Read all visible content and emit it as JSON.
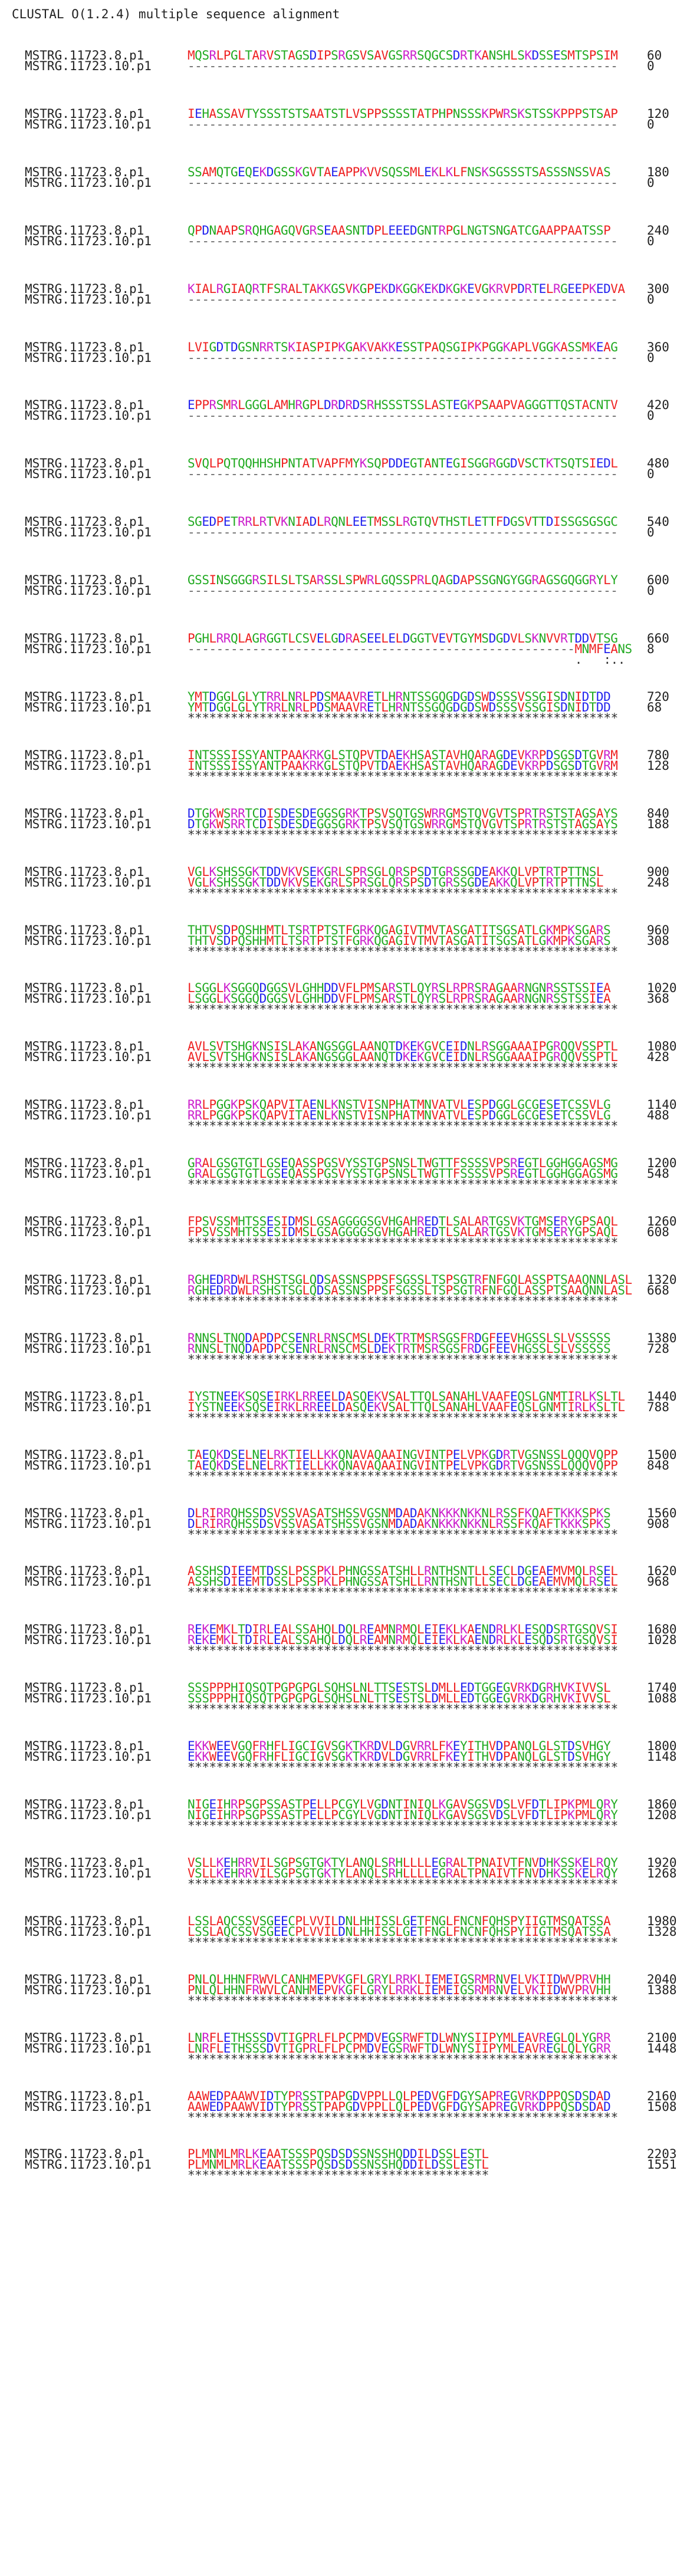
{
  "header": "CLUSTAL O(1.2.4) multiple sequence alignment",
  "colors": {
    "acidic": "#2222ee",
    "basic": "#cc22cc",
    "hydrophobic": "#ee2222",
    "polar": "#22aa22"
  },
  "blocks": [
    {
      "s1": "MQSRLPGLTARVSTAGSDIPSRGSVSAVGSRRSQGCSDRTKANSHLSKDSSESMTSPSIM",
      "n1": "60",
      "s2": "------------------------------------------------------------",
      "n2": "0",
      "c": "                                                            "
    },
    {
      "s1": "IEHASSAVTYSSSTSTSAATSTLVSPPSSSSTATPHPNSSSKPWRSKSTSSKPPPSTSAP",
      "n1": "120",
      "s2": "------------------------------------------------------------",
      "n2": "0",
      "c": "                                                            "
    },
    {
      "s1": "SSAMQTGEQEKDGSSKGVTAEAPPKVVSQSSMLEKLKLFNSKSGSSSTSASSSNSSVAS",
      "n1": "180",
      "s2": "------------------------------------------------------------",
      "n2": "0",
      "c": "                                                            "
    },
    {
      "s1": "QPDNAAPSRQHGAGQVGRSEAASNTDPLEEEDGNTRPGLNGTSNGATCGAAPPAATSSP",
      "n1": "240",
      "s2": "------------------------------------------------------------",
      "n2": "0",
      "c": "                                                            "
    },
    {
      "s1": "KIALRGIAQRTFSRALTAKKGSVKGPEKDKGGKEKDKGKEVGKRVPDRTELRGEEPKEDVA",
      "n1": "300",
      "s2": "------------------------------------------------------------",
      "n2": "0",
      "c": "                                                            "
    },
    {
      "s1": "LVIGDTDGSNRRTSKIASPIPKGAKVAKKESSTPAQSGIPKPGGKAPLVGGKASSMKEAG",
      "n1": "360",
      "s2": "------------------------------------------------------------",
      "n2": "0",
      "c": "                                                            "
    },
    {
      "s1": "EPPRSMRLGGGLAMHRGPLDRDRDSRHSSSTSSLASTEGKPSAAPVAGGGTTQSTACNTV",
      "n1": "420",
      "s2": "------------------------------------------------------------",
      "n2": "0",
      "c": "                                                            "
    },
    {
      "s1": "SVQLPQTQQHHSHPNTATVAPFMYKSQPDDEGTANTEGISGGRGGDVSCTKTSQTSIEDL",
      "n1": "480",
      "s2": "------------------------------------------------------------",
      "n2": "0",
      "c": "                                                            "
    },
    {
      "s1": "SGEDPETRRLRTVKNIADLRQNLEETMSSLRGTQVTHSTLETTFDGSVTTDISSGSGSGC",
      "n1": "540",
      "s2": "------------------------------------------------------------",
      "n2": "0",
      "c": "                                                            "
    },
    {
      "s1": "GSSINSGGGRSILSLTSARSSLSPWRLGQSSPRLQAGDAPSSGNGYGGRAGSGQGGRYLY",
      "n1": "600",
      "s2": "------------------------------------------------------------",
      "n2": "0",
      "c": "                                                            "
    },
    {
      "s1": "PGHLRRQLAGRGGTLCSVELGDRASEELELDGGTVEVTGYMSDGDVLSKNVVRTDDVTSG",
      "n1": "660",
      "s2": "------------------------------------------------------MNMFEANS",
      "n2": "8",
      "c": "                                                      .   :..  "
    },
    {
      "s1": "YMTDGGLGLYTRRLNRLPDSMAAVRETLHRNTSSGQGDGDSWDSSSVSSGISDNIDTDD",
      "n1": "720",
      "s2": "YMTDGGLGLYTRRLNRLPDSMAAVRETLHRNTSSGQGDGDSWDSSSVSSGISDNIDTDD",
      "n2": "68",
      "c": "************************************************************"
    },
    {
      "s1": "INTSSSISSYANTPAAKRKGLSTQPVTDAEKHSASTAVHQARAGDEVKRPDSGSDTGVRM",
      "n1": "780",
      "s2": "INTSSSISSYANTPAAKRKGLSTQPVTDAEKHSASTAVHQARAGDEVKRPDSGSDTGVRM",
      "n2": "128",
      "c": "************************************************************"
    },
    {
      "s1": "DTGKWSRRTCDISDESDEGGSGRKTPSVSQTGSWRRGMSTQVGVTSPRTRSTSTAGSAYS",
      "n1": "840",
      "s2": "DTGKWSRRTCDISDESDEGGSGRKTPSVSQTGSWRRGMSTQVGVTSPRTRSTSTAGSAYS",
      "n2": "188",
      "c": "************************************************************"
    },
    {
      "s1": "VGLKSHSSGKTDDVKVSEKGRLSPRSGLQRSPSDTGRSSGDEAKKQLVPTRTPTTNSL",
      "n1": "900",
      "s2": "VGLKSHSSGKTDDVKVSEKGRLSPRSGLQRSPSDTGRSSGDEAKKQLVPTRTPTTNSL",
      "n2": "248",
      "c": "************************************************************"
    },
    {
      "s1": "THTVSDPQSHHMTLTSRTPTSTFGRKQGAGIVTMVTASGATITSGSATLGKMPKSGARS",
      "n1": "960",
      "s2": "THTVSDPQSHHMTLTSRTPTSTFGRKQGAGIVTMVTASGATITSGSATLGKMPKSGARS",
      "n2": "308",
      "c": "************************************************************"
    },
    {
      "s1": "LSGGLKSGGQDGGSVLGHHDDVFLPMSARSTLQYRSLRPRSRAGAARNGNRSSTSSIEA",
      "n1": "1020",
      "s2": "LSGGLKSGGQDGGSVLGHHDDVFLPMSARSTLQYRSLRPRSRAGAARNGNRSSTSSIEA",
      "n2": "368",
      "c": "************************************************************"
    },
    {
      "s1": "AVLSVTSHGKNSISLAKANGSGGLAANQTDKEKGVCEIDNLRSGGAAAIPGRQQVSSPTL",
      "n1": "1080",
      "s2": "AVLSVTSHGKNSISLAKANGSGGLAANQTDKEKGVCEIDNLRSGGAAAIPGRQQVSSPTL",
      "n2": "428",
      "c": "************************************************************"
    },
    {
      "s1": "RRLPGGKPSKQAPVITAENLKNSTVISNPHATMNVATVLESPDGGLGCGESETCSSVLG",
      "n1": "1140",
      "s2": "RRLPGGKPSKQAPVITAENLKNSTVISNPHATMNVATVLESPDGGLGCGESETCSSVLG",
      "n2": "488",
      "c": "************************************************************"
    },
    {
      "s1": "GRALGSGTGTLGSEQASSPGSVYSSTGPSNSLTWGTTFSSSSVPSREGTLGGHGGAGSMG",
      "n1": "1200",
      "s2": "GRALGSGTGTLGSEQASSPGSVYSSTGPSNSLTWGTTFSSSSVPSREGTLGGHGGAGSMG",
      "n2": "548",
      "c": "************************************************************"
    },
    {
      "s1": "FPSVSSMHTSSESIDMSLGSAGGGGSGVHGAHREDTLSALARTGSVKTGMSERYGPSAQL",
      "n1": "1260",
      "s2": "FPSVSSMHTSSESIDMSLGSAGGGGSGVHGAHREDTLSALARTGSVKTGMSERYGPSAQL",
      "n2": "608",
      "c": "************************************************************"
    },
    {
      "s1": "RGHEDRDWLRSHSTSGLQDSASSNSPPSFSGSSLTSPSGTRFNFGQLASSPTSAAQNNLASL",
      "n1": "1320",
      "s2": "RGHEDRDWLRSHSTSGLQDSASSNSPPSFSGSSLTSPSGTRFNFGQLASSPTSAAQNNLASL",
      "n2": "668",
      "c": "************************************************************"
    },
    {
      "s1": "RNNSLTNQDAPDPCSENRLRNSCMSLDEKTRTMSRSGSFRDGFEEVHGSSLSLVSSSSS",
      "n1": "1380",
      "s2": "RNNSLTNQDAPDPCSENRLRNSCMSLDEKTRTMSRSGSFRDGFEEVHGSSLSLVSSSSS",
      "n2": "728",
      "c": "************************************************************"
    },
    {
      "s1": "IYSTNEEKSQSEIRKLRREELDASQEKVSALTTQLSANAHLVAAFEQSLGNMTIRLKSLTL",
      "n1": "1440",
      "s2": "IYSTNEEKSQSEIRKLRREELDASQEKVSALTTQLSANAHLVAAFEQSLGNMTIRLKSLTL",
      "n2": "788",
      "c": "************************************************************"
    },
    {
      "s1": "TAEQKDSELNELRKTIELLKKQNAVAQAAINGVINTPELVPKGDRTVGSNSSLQQQVQPP",
      "n1": "1500",
      "s2": "TAEQKDSELNELRKTIELLKKQNAVAQAAINGVINTPELVPKGDRTVGSNSSLQQQVQPP",
      "n2": "848",
      "c": "************************************************************"
    },
    {
      "s1": "DLRIRRQHSSDSVSSVASATSHSSVGSNMDADAKNKKKNKKNLRSSFKQAFTKKKSPKS",
      "n1": "1560",
      "s2": "DLRIRRQHSSDSVSSVASATSHSSVGSNMDADAKNKKKNKKNLRSSFKQAFTKKKSPKS",
      "n2": "908",
      "c": "************************************************************"
    },
    {
      "s1": "ASSHSDIEEMTDSSLPSSPKLPHNGSSATSHLLRNTHSNTLLSECLDGEAEMVMQLRSEL",
      "n1": "1620",
      "s2": "ASSHSDIEEMTDSSLPSSPKLPHNGSSATSHLLRNTHSNTLLSECLDGEAEMVMQLRSEL",
      "n2": "968",
      "c": "************************************************************"
    },
    {
      "s1": "REKEMKLTDIRLEALSSAHQLDQLREAMNRMQLEIEKLKAENDRLKLESQDSRTGSQVSI",
      "n1": "1680",
      "s2": "REKEMKLTDIRLEALSSAHQLDQLREAMNRMQLEIEKLKAENDRLKLESQDSRTGSQVSI",
      "n2": "1028",
      "c": "************************************************************"
    },
    {
      "s1": "SSSPPPHIQSQTPGPGPGLSQHSLNLTTSESTSLDMLLEDTGGEGVRKDGRHVKIVVSL",
      "n1": "1740",
      "s2": "SSSPPPHIQSQTPGPGPGLSQHSLNLTTSESTSLDMLLEDTGGEGVRKDGRHVKIVVSL",
      "n2": "1088",
      "c": "************************************************************"
    },
    {
      "s1": "EKKWEEVGQFRHFLIGCIGVSGKTKRDVLDGVRRLFKEYITHVDPANQLGLSTDSVHGY",
      "n1": "1800",
      "s2": "EKKWEEVGQFRHFLIGCIGVSGKTKRDVLDGVRRLFKEYITHVDPANQLGLSTDSVHGY",
      "n2": "1148",
      "c": "************************************************************"
    },
    {
      "s1": "NIGEIHRPSGPSSASTPELLPCGYLVGDNTINIQLKGAVSGSVDSLVFDTLIPKPMLQRY",
      "n1": "1860",
      "s2": "NIGEIHRPSGPSSASTPELLPCGYLVGDNTINIQLKGAVSGSVDSLVFDTLIPKPMLQRY",
      "n2": "1208",
      "c": "************************************************************"
    },
    {
      "s1": "VSLLKEHRRVILSGPSGTGKTYLANQLSRHLLLLEGRALTPNAIVTFNVDHKSSKELRQY",
      "n1": "1920",
      "s2": "VSLLKEHRRVILSGPSGTGKTYLANQLSRHLLLLEGRALTPNAIVTFNVDHKSSKELRQY",
      "n2": "1268",
      "c": "************************************************************"
    },
    {
      "s1": "LSSLAQCSSVSGEECPLVVILDNLHHISSLGETFNGLFNCNFQHSPYIIGTMSQATSSA",
      "n1": "1980",
      "s2": "LSSLAQCSSVSGEECPLVVILDNLHHISSLGETFNGLFNCNFQHSPYIIGTMSQATSSA",
      "n2": "1328",
      "c": "************************************************************"
    },
    {
      "s1": "PNLQLHHNFRWVLCANHMEPVKGFLGRYLRRKLIEMEIGSRMRNVELVKIIDWVPRVHH",
      "n1": "2040",
      "s2": "PNLQLHHNFRWVLCANHMEPVKGFLGRYLRRKLIEMEIGSRMRNVELVKIIDWVPRVHH",
      "n2": "1388",
      "c": "************************************************************"
    },
    {
      "s1": "LNRFLETHSSSDVTIGPRLFLPCPMDVEGSRWFTDLWNYSIIPYMLEAVREGLQLYGRR",
      "n1": "2100",
      "s2": "LNRFLETHSSSDVTIGPRLFLPCPMDVEGSRWFTDLWNYSIIPYMLEAVREGLQLYGRR",
      "n2": "1448",
      "c": "************************************************************"
    },
    {
      "s1": "AAWEDPAAWVIDTYPRSSTPAPGDVPPLLQLPEDVGFDGYSAPREGVRKDPPQSDSDAD",
      "n1": "2160",
      "s2": "AAWEDPAAWVIDTYPRSSTPAPGDVPPLLQLPEDVGFDGYSAPREGVRKDPPQSDSDAD",
      "n2": "1508",
      "c": "************************************************************"
    },
    {
      "s1": "PLMNMLMRLKEAATSSSPQSDSDSSNSSHQDDILDSSLESTL",
      "n1": "2203",
      "s2": "PLMNMLMRLKEAATSSSPQSDSDSSNSSHQDDILDSSLESTL",
      "n2": "1551",
      "c": "******************************************"
    }
  ],
  "names": {
    "seq1": "MSTRG.11723.8.p1",
    "seq2": "MSTRG.11723.10.p1"
  }
}
